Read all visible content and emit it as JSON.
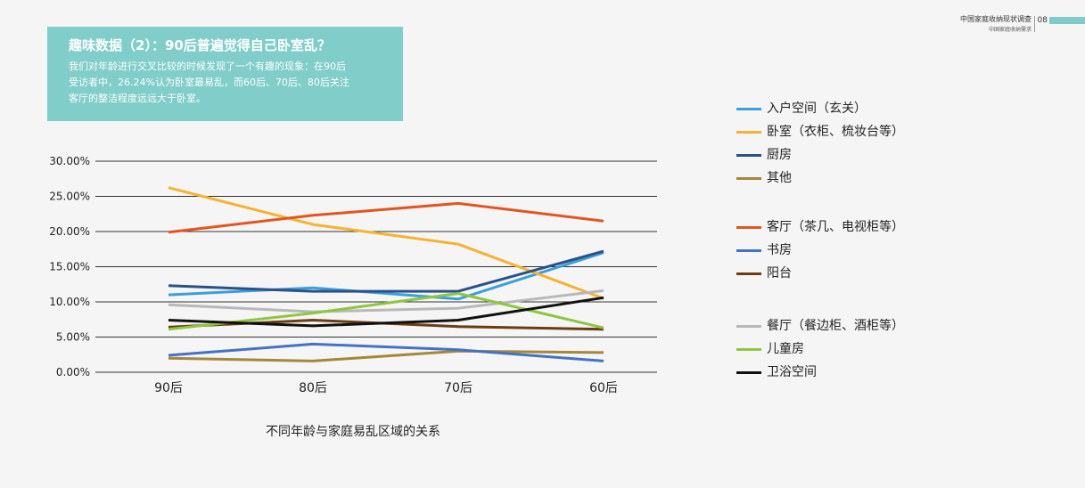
{
  "header": {
    "title": "中国家庭收纳现状调查",
    "subtitle": "中国家庭收纳需求",
    "page_number": "08",
    "accent_color": "#7fcbc9"
  },
  "callout": {
    "title": "趣味数据（2）：90后普遍觉得自己卧室乱？",
    "body_lines": [
      "我们对年龄进行交叉比较的时候发现了一个有趣的现象：在90后",
      "受访者中，26.24%认为卧室最易乱，而60后、70后、80后关注",
      "客厅的整洁程度远远大于卧室。"
    ],
    "background": "#80cdc9"
  },
  "chart_data": {
    "type": "line",
    "categories": [
      "90后",
      "80后",
      "70后",
      "60后"
    ],
    "xlabel": "不同年龄与家庭易乱区域的关系",
    "ylabel": "",
    "ylim": [
      0,
      30
    ],
    "ytick_values": [
      0,
      5,
      10,
      15,
      20,
      25,
      30
    ],
    "ytick_labels": [
      "0.00%",
      "5.00%",
      "10.00%",
      "15.00%",
      "20.00%",
      "25.00%",
      "30.00%"
    ],
    "grid": true,
    "legend_position": "right",
    "series": [
      {
        "name": "入户空间（玄关）",
        "color": "#3aa0d9",
        "values": [
          11.0,
          12.0,
          10.4,
          17.0
        ]
      },
      {
        "name": "卧室（衣柜、梳妆台等）",
        "color": "#f5b330",
        "values": [
          26.24,
          21.0,
          18.2,
          10.5
        ]
      },
      {
        "name": "厨房",
        "color": "#2b5288",
        "values": [
          12.3,
          11.5,
          11.5,
          17.2
        ]
      },
      {
        "name": "其他",
        "color": "#a5873a",
        "values": [
          2.0,
          1.6,
          3.0,
          2.8
        ]
      },
      {
        "name": "客厅（茶几、电视柜等）",
        "color": "#e2561e",
        "values": [
          19.9,
          22.3,
          24.0,
          21.5
        ]
      },
      {
        "name": "书房",
        "color": "#4472c4",
        "values": [
          2.4,
          4.0,
          3.2,
          1.6
        ]
      },
      {
        "name": "阳台",
        "color": "#6b3d14",
        "values": [
          6.4,
          7.4,
          6.5,
          6.1
        ]
      },
      {
        "name": "餐厅（餐边柜、酒柜等）",
        "color": "#b8b8b8",
        "values": [
          9.6,
          8.6,
          9.1,
          11.6
        ]
      },
      {
        "name": "儿童房",
        "color": "#8dc63f",
        "values": [
          6.1,
          8.4,
          11.2,
          6.3
        ]
      },
      {
        "name": "卫浴空间",
        "color": "#111111",
        "values": [
          7.4,
          6.6,
          7.4,
          10.6
        ]
      }
    ]
  }
}
